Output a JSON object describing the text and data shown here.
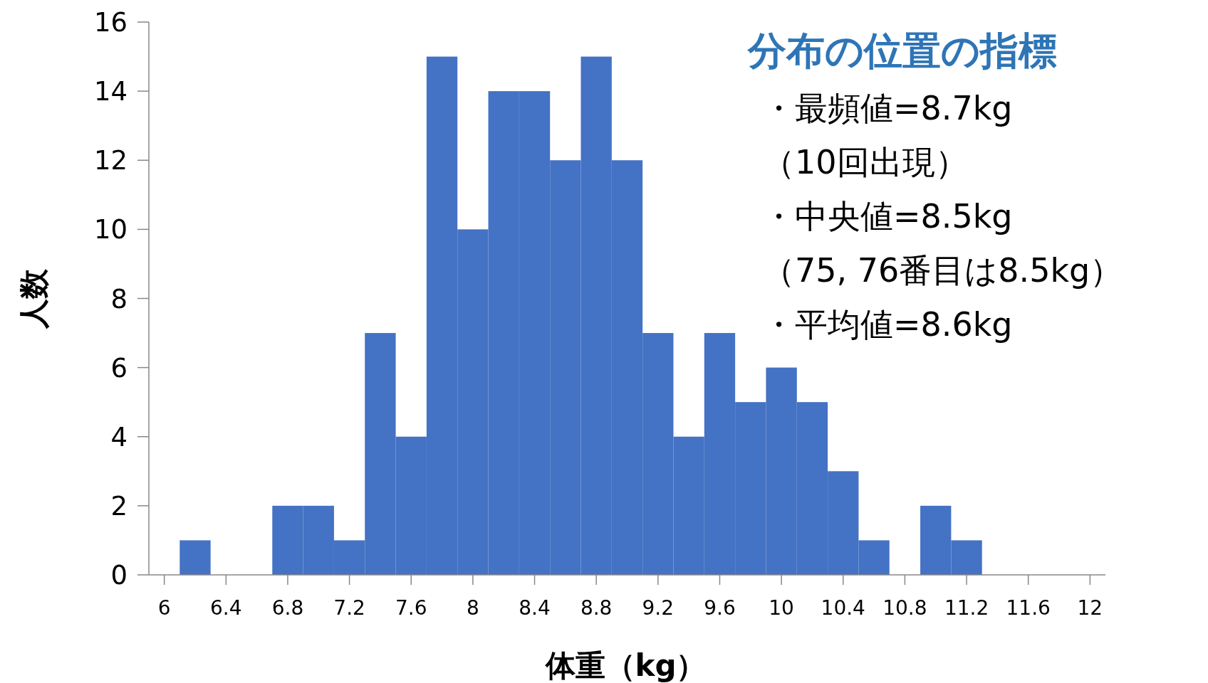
{
  "chart_data": {
    "type": "histogram",
    "title": "分布の位置の指標",
    "xlabel": "体重（kg）",
    "ylabel": "人数",
    "annotations": [
      "・最頻値=8.7kg",
      "（10回出現）",
      "・中央値=8.5kg",
      "（75, 76番目は8.5kg）",
      "・平均値=8.6kg"
    ],
    "bins": [
      5.9,
      6.1,
      6.3,
      6.5,
      6.7,
      6.9,
      7.1,
      7.3,
      7.5,
      7.7,
      7.9,
      8.1,
      8.3,
      8.5,
      8.7,
      8.9,
      9.1,
      9.3,
      9.5,
      9.7,
      9.9,
      10.1,
      10.3,
      10.5,
      10.7,
      10.9,
      11.1,
      11.3,
      11.5,
      11.7,
      11.9,
      12.1
    ],
    "values": [
      0,
      1,
      0,
      0,
      2,
      2,
      1,
      7,
      4,
      15,
      10,
      14,
      14,
      12,
      15,
      12,
      7,
      4,
      7,
      5,
      6,
      5,
      3,
      1,
      0,
      2,
      1,
      0,
      0,
      0,
      0
    ],
    "color": "#4472c4",
    "xlim": [
      5.9,
      12.1
    ],
    "ylim": [
      0,
      16
    ],
    "xticks": [
      6,
      6.4,
      6.8,
      7.2,
      7.6,
      8,
      8.4,
      8.8,
      9.2,
      9.6,
      10,
      10.4,
      10.8,
      11.2,
      11.6,
      12
    ],
    "yticks": [
      0,
      2,
      4,
      6,
      8,
      10,
      12,
      14,
      16
    ]
  }
}
